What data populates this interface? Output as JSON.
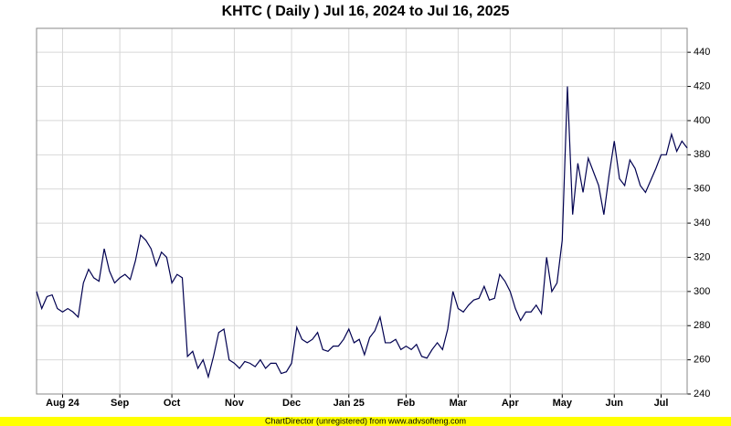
{
  "chart_data": {
    "type": "line",
    "title": "KHTC ( Daily ) Jul 16, 2024 to Jul 16, 2025",
    "footer": "ChartDirector (unregistered) from www.advsofteng.com",
    "categories": [
      null,
      null,
      null,
      null,
      null,
      "Aug 24",
      null,
      null,
      null,
      null,
      null,
      null,
      null,
      null,
      null,
      null,
      "Sep",
      null,
      null,
      null,
      null,
      null,
      null,
      null,
      null,
      null,
      "Oct",
      null,
      null,
      null,
      null,
      null,
      null,
      null,
      null,
      null,
      null,
      null,
      "Nov",
      null,
      null,
      null,
      null,
      null,
      null,
      null,
      null,
      null,
      null,
      "Dec",
      null,
      null,
      null,
      null,
      null,
      null,
      null,
      null,
      null,
      null,
      "Jan 25",
      null,
      null,
      null,
      null,
      null,
      null,
      null,
      null,
      null,
      null,
      "Feb",
      null,
      null,
      null,
      null,
      null,
      null,
      null,
      null,
      null,
      "Mar",
      null,
      null,
      null,
      null,
      null,
      null,
      null,
      null,
      null,
      "Apr",
      null,
      null,
      null,
      null,
      null,
      null,
      null,
      null,
      null,
      "May",
      null,
      null,
      null,
      null,
      null,
      null,
      null,
      null,
      null,
      "Jun",
      null,
      null,
      null,
      null,
      null,
      null,
      null,
      null,
      "Jul",
      null,
      null,
      null,
      null,
      null
    ],
    "series": [
      {
        "name": "KHTC",
        "color": "#000050",
        "values": [
          300,
          290,
          297,
          298,
          290,
          288,
          290,
          288,
          285,
          305,
          313,
          308,
          306,
          325,
          312,
          305,
          308,
          310,
          307,
          318,
          333,
          330,
          325,
          315,
          323,
          320,
          305,
          310,
          308,
          262,
          265,
          255,
          260,
          250,
          262,
          276,
          278,
          260,
          258,
          255,
          259,
          258,
          256,
          260,
          255,
          258,
          258,
          252,
          253,
          258,
          279,
          272,
          270,
          272,
          276,
          266,
          265,
          268,
          268,
          272,
          278,
          270,
          272,
          263,
          273,
          277,
          285,
          270,
          270,
          272,
          266,
          268,
          266,
          269,
          262,
          261,
          266,
          270,
          266,
          278,
          300,
          290,
          288,
          292,
          295,
          296,
          303,
          295,
          296,
          310,
          306,
          300,
          290,
          283,
          288,
          288,
          292,
          287,
          320,
          300,
          305,
          330,
          420,
          345,
          375,
          358,
          378,
          370,
          362,
          345,
          368,
          388,
          366,
          362,
          377,
          372,
          362,
          358,
          365,
          372,
          380,
          380,
          392,
          382,
          388,
          384
        ]
      }
    ],
    "ylim": [
      240,
      454
    ],
    "yticks": [
      240,
      260,
      280,
      300,
      320,
      340,
      360,
      380,
      400,
      420,
      440
    ],
    "grid": true
  }
}
